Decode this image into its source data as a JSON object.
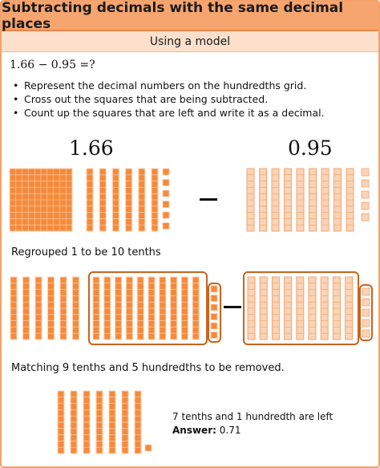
{
  "header": {
    "title": "Subtracting decimals with the same decimal places",
    "subtitle": "Using a model"
  },
  "problem": {
    "equation": "1.66 − 0.95 =?",
    "steps": [
      "Represent the decimal numbers on the hundredths grid.",
      "Cross out the squares that are being subtracted.",
      "Count up the squares that are left and write it as a decimal."
    ]
  },
  "model": {
    "first_number": "1.66",
    "second_number": "0.95",
    "minus_sign": "–"
  },
  "regroup": {
    "caption": "Regrouped 1 to be 10 tenths"
  },
  "matching": {
    "caption": "Matching 9 tenths and 5 hundredths to be removed."
  },
  "result": {
    "remaining_text": "7 tenths and 1 hundredth are left",
    "answer_label": "Answer:",
    "answer_value": "0.71"
  },
  "colors": {
    "orange": "#f58a3d",
    "orange_dark": "#d9621a",
    "peach": "#fbd3b6",
    "peach_line": "#f2a672",
    "box_border": "#c8641f"
  }
}
